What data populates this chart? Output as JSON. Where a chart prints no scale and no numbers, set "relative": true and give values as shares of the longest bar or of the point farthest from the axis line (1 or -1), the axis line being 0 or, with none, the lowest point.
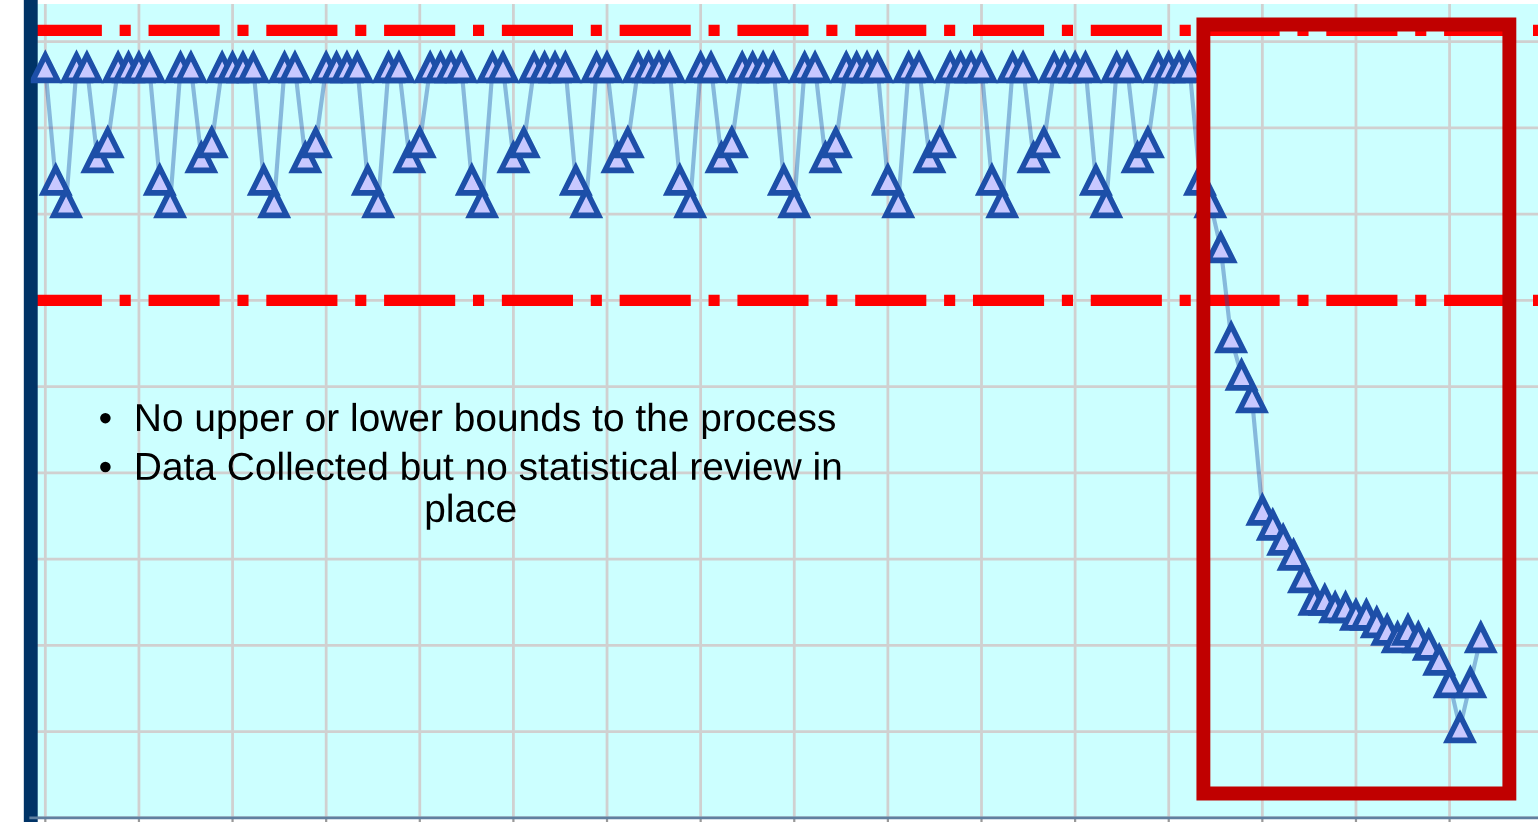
{
  "chart_data": {
    "type": "line",
    "relative": true,
    "marker": "triangle",
    "line_style": "solid",
    "grid": true,
    "legend": false,
    "categories": [
      null,
      null,
      null,
      null,
      null,
      null,
      null,
      null,
      null,
      null,
      null,
      null,
      null,
      null,
      null,
      null,
      null,
      null,
      null,
      null,
      null,
      null,
      null,
      null,
      null,
      null,
      null,
      null,
      null,
      null,
      null,
      null,
      null,
      null,
      null,
      null,
      null,
      null,
      null,
      null,
      null,
      null,
      null,
      null,
      null,
      null,
      null,
      null,
      null,
      null,
      null,
      null,
      null,
      null,
      null,
      null,
      null,
      null,
      null,
      null,
      null,
      null,
      null,
      null,
      null,
      null,
      null,
      null,
      null,
      null,
      null,
      null,
      null,
      null,
      null,
      null,
      null,
      null,
      null,
      null,
      null,
      null,
      null,
      null,
      null,
      null,
      null,
      null,
      null,
      null,
      null,
      null,
      null,
      null,
      null,
      null,
      null,
      null,
      null,
      null,
      null,
      null,
      null,
      null,
      null,
      null,
      null,
      null,
      null,
      null,
      null,
      null,
      null,
      null,
      null,
      null,
      null,
      null,
      null,
      null,
      null,
      null,
      null,
      null,
      null,
      null,
      null,
      null,
      null,
      null,
      null,
      null,
      null,
      null,
      null,
      null,
      null,
      null,
      null
    ],
    "series": [
      {
        "color": "#1d4fa8",
        "values": [
          1,
          0.85,
          0.82,
          1,
          1,
          0.88,
          0.9,
          1,
          1,
          1,
          1,
          0.85,
          0.82,
          1,
          1,
          0.88,
          0.9,
          1,
          1,
          1,
          1,
          0.85,
          0.82,
          1,
          1,
          0.88,
          0.9,
          1,
          1,
          1,
          1,
          0.85,
          0.82,
          1,
          1,
          0.88,
          0.9,
          1,
          1,
          1,
          1,
          0.85,
          0.82,
          1,
          1,
          0.88,
          0.9,
          1,
          1,
          1,
          1,
          0.85,
          0.82,
          1,
          1,
          0.88,
          0.9,
          1,
          1,
          1,
          1,
          0.85,
          0.82,
          1,
          1,
          0.88,
          0.9,
          1,
          1,
          1,
          1,
          0.85,
          0.82,
          1,
          1,
          0.88,
          0.9,
          1,
          1,
          1,
          1,
          0.85,
          0.82,
          1,
          1,
          0.88,
          0.9,
          1,
          1,
          1,
          1,
          0.85,
          0.82,
          1,
          1,
          0.88,
          0.9,
          1,
          1,
          1,
          1,
          0.85,
          0.82,
          1,
          1,
          0.88,
          0.9,
          1,
          1,
          1,
          1,
          0.85,
          0.82,
          0.76,
          0.64,
          0.59,
          0.56,
          0.41,
          0.39,
          0.37,
          0.35,
          0.32,
          0.29,
          0.29,
          0.28,
          0.28,
          0.27,
          0.27,
          0.26,
          0.25,
          0.24,
          0.25,
          0.24,
          0.23,
          0.21,
          0.18,
          0.12,
          0.18,
          0.24
        ]
      }
    ],
    "ref_lines": [
      {
        "axis": "y",
        "value": 1.05,
        "color": "#ff0000",
        "line_style": "dashdot"
      },
      {
        "axis": "y",
        "value": 0.69,
        "color": "#ff0000",
        "line_style": "dashdot"
      }
    ],
    "annotations": [
      "•  No upper or lower bounds to the process",
      "•  Data Collected but no statistical review in\nplace"
    ]
  }
}
